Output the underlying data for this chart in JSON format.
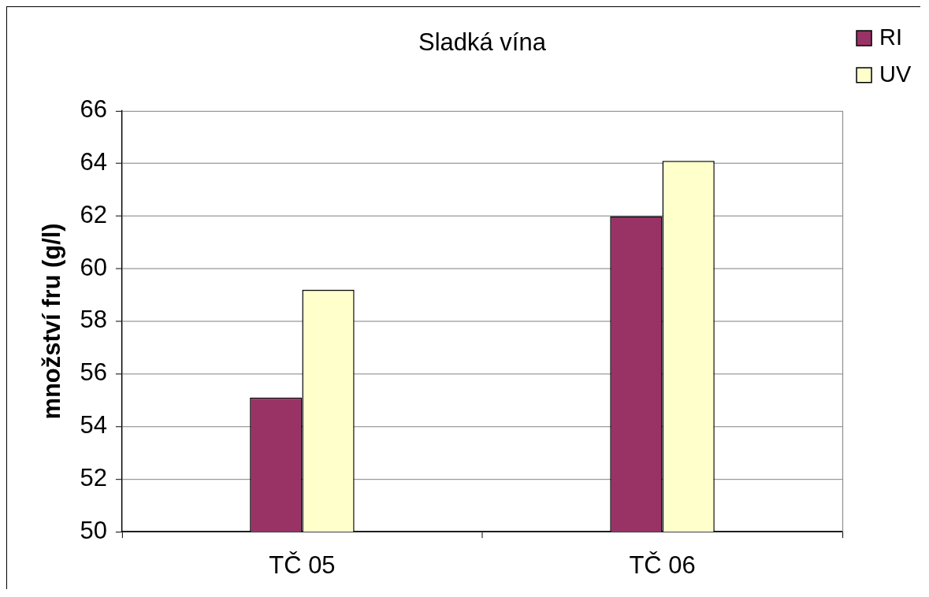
{
  "chart_data": {
    "type": "bar",
    "title": "Sladká vína",
    "ylabel": "množství fru (g/l)",
    "categories": [
      "TČ 05",
      "TČ 06"
    ],
    "series": [
      {
        "name": "RI",
        "color": "#993366",
        "values": [
          55.1,
          62.0
        ]
      },
      {
        "name": "UV",
        "color": "#ffffcc",
        "values": [
          59.2,
          64.1
        ]
      }
    ],
    "ylim": [
      50,
      66
    ],
    "yticks": [
      50,
      52,
      54,
      56,
      58,
      60,
      62,
      64,
      66
    ],
    "grid": "y",
    "legend": "top right"
  }
}
